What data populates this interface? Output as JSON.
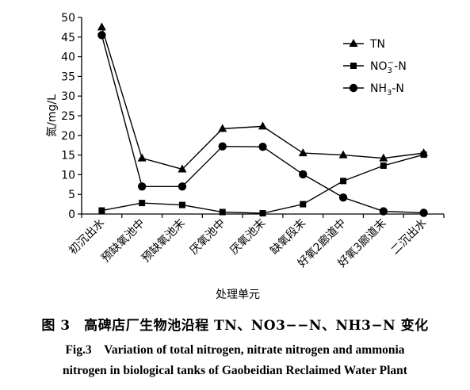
{
  "chart_data": {
    "type": "line",
    "xlabel": "处理单元",
    "ylabel": "氮/mg/L",
    "ylim": [
      0,
      50
    ],
    "yticks": [
      0,
      5,
      10,
      15,
      20,
      25,
      30,
      35,
      40,
      45,
      50
    ],
    "categories": [
      "初沉出水",
      "预缺氧池中",
      "预缺氧池末",
      "厌氧池中",
      "厌氧池末",
      "缺氧段末",
      "好氧2廊道中",
      "好氧3廊道末",
      "二沉出水"
    ],
    "grid": false,
    "legend_position": "top-right",
    "series": [
      {
        "name": "TN",
        "marker": "triangle",
        "values": [
          47.5,
          14.2,
          11.4,
          21.7,
          22.3,
          15.5,
          15.0,
          14.2,
          15.5
        ]
      },
      {
        "name": "NO3−-N",
        "marker": "square",
        "values": [
          0.9,
          2.8,
          2.3,
          0.5,
          0.2,
          2.5,
          8.4,
          12.3,
          15.1
        ]
      },
      {
        "name": "NH3-N",
        "marker": "circle",
        "values": [
          45.5,
          7.0,
          7.0,
          17.2,
          17.1,
          10.1,
          4.2,
          0.7,
          0.3
        ]
      }
    ]
  },
  "caption": {
    "cn": "图 3　高碑店厂生物池沿程 TN、NO3−−N、NH3−N 变化",
    "en_line1": "Fig.3　Variation of total nitrogen, nitrate nitrogen and ammonia",
    "en_line2": "nitrogen in biological tanks of Gaobeidian Reclaimed Water Plant"
  }
}
